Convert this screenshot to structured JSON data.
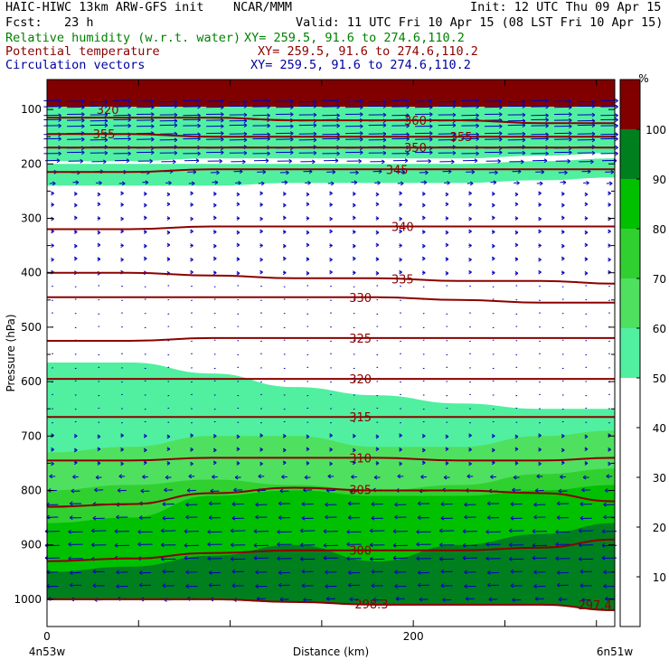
{
  "header": {
    "line1_left": "HAIC-HIWC 13km ARW-GFS init    NCAR/MMM",
    "line1_right": "Init: 12 UTC Thu 09 Apr 15",
    "line2_left": "Fcst:   23 h",
    "line2_right": "Valid: 11 UTC Fri 10 Apr 15 (08 LST Fri 10 Apr 15)",
    "field1": "Relative humidity (w.r.t. water)",
    "field1_xy": "XY= 259.5, 91.6 to 274.6,110.2",
    "field2": "Potential temperature",
    "field2_xy": "XY= 259.5, 91.6 to 274.6,110.2",
    "field3": "Circulation vectors",
    "field3_xy": "XY= 259.5, 91.6 to 274.6,110.2"
  },
  "colors": {
    "rh_fill": [
      "#ffffff",
      "#ffffff",
      "#ffffff",
      "#ffffff",
      "#ffffff",
      "#50f0a0",
      "#50e060",
      "#30d030",
      "#00c000",
      "#007f1f",
      "#800000",
      "#ff8080"
    ],
    "theta_line": "#8b0000",
    "vector": "#0000c0",
    "text_green": "#008000",
    "text_red": "#8b0000",
    "text_blue": "#0000a0"
  },
  "chart_data": {
    "type": "heatmap",
    "title": "",
    "xlabel": "Distance (km)",
    "ylabel": "Pressure (hPa)",
    "xlim": [
      0,
      310
    ],
    "ylim": [
      1050,
      45
    ],
    "x_ticks": [
      "0",
      "200"
    ],
    "x_tick_values": [
      0,
      200
    ],
    "x_end_labels": [
      "4n53w",
      "6n51w"
    ],
    "y_ticks": [
      "100",
      "200",
      "300",
      "400",
      "500",
      "600",
      "700",
      "800",
      "900",
      "1000"
    ],
    "y_tick_values": [
      100,
      200,
      300,
      400,
      500,
      600,
      700,
      800,
      900,
      1000
    ],
    "colorbar": {
      "unit": "%",
      "levels": [
        0,
        10,
        20,
        30,
        40,
        50,
        60,
        70,
        80,
        90,
        100,
        110
      ],
      "labels": [
        "10",
        "20",
        "30",
        "40",
        "50",
        "60",
        "70",
        "80",
        "90",
        "100"
      ],
      "label_values": [
        10,
        20,
        30,
        40,
        50,
        60,
        70,
        80,
        90,
        100
      ]
    },
    "rh_bands": [
      {
        "rh": 100,
        "top": [
          45,
          45,
          45,
          45,
          45,
          45,
          45,
          45
        ],
        "bottom": [
          95,
          95,
          95,
          95,
          95,
          95,
          95,
          95
        ]
      },
      {
        "rh": 55,
        "top": [
          95,
          95,
          95,
          95,
          95,
          95,
          95,
          95
        ],
        "bottom": [
          195,
          195,
          190,
          190,
          190,
          190,
          185,
          180
        ]
      },
      {
        "rh": 55,
        "top": [
          200,
          200,
          200,
          200,
          200,
          200,
          195,
          190
        ],
        "bottom": [
          240,
          240,
          240,
          235,
          235,
          235,
          230,
          225
        ]
      },
      {
        "rh": 55,
        "top": [
          565,
          565,
          585,
          610,
          625,
          640,
          650,
          650
        ],
        "bottom": [
          1000,
          1000,
          1000,
          1005,
          1010,
          1010,
          1010,
          1020
        ]
      },
      {
        "rh": 65,
        "top": [
          730,
          720,
          700,
          700,
          720,
          720,
          700,
          690
        ],
        "bottom": [
          1000,
          1000,
          1000,
          1005,
          1010,
          1010,
          1010,
          1020
        ]
      },
      {
        "rh": 75,
        "top": [
          800,
          790,
          780,
          790,
          800,
          790,
          770,
          760
        ],
        "bottom": [
          1000,
          1000,
          1000,
          1005,
          1010,
          1010,
          1010,
          1020
        ]
      },
      {
        "rh": 85,
        "top": [
          860,
          850,
          810,
          800,
          810,
          810,
          800,
          790
        ],
        "bottom": [
          1000,
          1000,
          1000,
          1005,
          1010,
          1010,
          1010,
          1020
        ]
      },
      {
        "rh": 95,
        "top": [
          950,
          940,
          920,
          900,
          930,
          900,
          880,
          860
        ],
        "bottom": [
          1000,
          1000,
          1000,
          1005,
          1010,
          1010,
          1010,
          1020
        ]
      }
    ],
    "band_x": [
      0,
      45,
      90,
      135,
      180,
      225,
      270,
      310
    ],
    "theta_contours": [
      {
        "value": 360,
        "label": "360",
        "label_x": 195,
        "p": [
          115,
          115,
          115,
          120,
          120,
          120,
          125,
          125
        ]
      },
      {
        "value": 355,
        "label": "355",
        "label_x": 25,
        "p": [
          145,
          145,
          150,
          150,
          150,
          150,
          150,
          150
        ]
      },
      {
        "value": 350,
        "label": "350",
        "label_x": 195,
        "p": [
          170,
          170,
          170,
          170,
          170,
          170,
          170,
          170
        ]
      },
      {
        "value": 345,
        "label": "345",
        "label_x": 185,
        "p": [
          215,
          215,
          210,
          210,
          210,
          210,
          210,
          210
        ]
      },
      {
        "value": 340,
        "label": "340",
        "label_x": 188,
        "p": [
          320,
          320,
          315,
          315,
          315,
          315,
          315,
          315
        ]
      },
      {
        "value": 335,
        "label": "335",
        "label_x": 188,
        "p": [
          400,
          400,
          405,
          410,
          410,
          415,
          415,
          420
        ]
      },
      {
        "value": 330,
        "label": "330",
        "label_x": 165,
        "p": [
          445,
          445,
          445,
          445,
          445,
          450,
          455,
          455
        ]
      },
      {
        "value": 325,
        "label": "325",
        "label_x": 165,
        "p": [
          525,
          525,
          520,
          520,
          520,
          520,
          520,
          520
        ]
      },
      {
        "value": 320,
        "label": "320",
        "label_x": 165,
        "p": [
          595,
          595,
          595,
          595,
          595,
          595,
          595,
          595
        ]
      },
      {
        "value": 315,
        "label": "315",
        "label_x": 165,
        "p": [
          665,
          665,
          665,
          665,
          665,
          665,
          665,
          665
        ]
      },
      {
        "value": 310,
        "label": "310",
        "label_x": 165,
        "p": [
          745,
          745,
          740,
          740,
          740,
          745,
          745,
          740
        ]
      },
      {
        "value": 305,
        "label": "305",
        "label_x": 165,
        "p": [
          830,
          825,
          805,
          795,
          800,
          800,
          805,
          820
        ]
      },
      {
        "value": 300,
        "label": "300",
        "label_x": 165,
        "p": [
          930,
          925,
          915,
          910,
          910,
          910,
          905,
          890
        ]
      },
      {
        "value": 298.3,
        "label": "298.3",
        "label_x": 168,
        "p": [
          1000,
          1000,
          1000,
          1005,
          1010,
          1010,
          1010,
          1020
        ]
      }
    ],
    "extra_labels": [
      {
        "label": "320",
        "x": 27,
        "p": 100
      },
      {
        "label": "355",
        "x": 220,
        "p": 150
      },
      {
        "label": "297.4",
        "x": 290,
        "p": 1010
      }
    ],
    "wind_vectors": {
      "note_rows_p": [
        85,
        95,
        110,
        120,
        130,
        145,
        155,
        170,
        180,
        195,
        215,
        235,
        255,
        275,
        300,
        325,
        350,
        375,
        400,
        425,
        450,
        475,
        500,
        525,
        550,
        575,
        600,
        625,
        650,
        675,
        700,
        725,
        750,
        775,
        800,
        825,
        850,
        875,
        900,
        925,
        950,
        975,
        1000
      ],
      "u_by_row": [
        6,
        6,
        6,
        6,
        6,
        6,
        6,
        6,
        6,
        5,
        3,
        2,
        1,
        1,
        1,
        1,
        1,
        1,
        1,
        0.5,
        0.5,
        0.5,
        0.5,
        0.5,
        0.5,
        0.5,
        0.5,
        0.5,
        0.5,
        0.5,
        1,
        1,
        1,
        -2,
        -3,
        -4,
        -4,
        -5,
        -5,
        -5,
        -4,
        -4,
        -3
      ]
    }
  }
}
